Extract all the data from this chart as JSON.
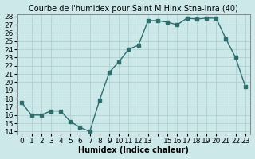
{
  "x": [
    0,
    1,
    2,
    3,
    4,
    5,
    6,
    7,
    8,
    9,
    10,
    11,
    12,
    13,
    14,
    15,
    16,
    17,
    18,
    19,
    20,
    21,
    22,
    23
  ],
  "y": [
    17.5,
    16.0,
    16.0,
    16.5,
    16.5,
    15.2,
    14.5,
    14.0,
    17.8,
    21.2,
    22.5,
    24.0,
    24.5,
    27.5,
    27.5,
    27.3,
    27.0,
    27.8,
    27.7,
    27.8,
    27.8,
    25.3,
    23.0,
    19.5
  ],
  "title": "Courbe de l'humidex pour Saint M Hinx Stna-Inra (40)",
  "xlabel": "Humidex (Indice chaleur)",
  "ylabel": "",
  "ylim": [
    14,
    28
  ],
  "xlim": [
    -0.5,
    23.5
  ],
  "yticks": [
    14,
    15,
    16,
    17,
    18,
    19,
    20,
    21,
    22,
    23,
    24,
    25,
    26,
    27,
    28
  ],
  "xticks": [
    0,
    1,
    2,
    3,
    4,
    5,
    6,
    7,
    8,
    9,
    10,
    11,
    12,
    13,
    14,
    15,
    16,
    17,
    18,
    19,
    20,
    21,
    22,
    23
  ],
  "xtick_labels": [
    "0",
    "1",
    "2",
    "3",
    "4",
    "5",
    "6",
    "7",
    "8",
    "9",
    "10",
    "11",
    "12",
    "13",
    "",
    "15",
    "16",
    "17",
    "18",
    "19",
    "20",
    "21",
    "22",
    "23"
  ],
  "line_color": "#2d6e6e",
  "marker_color": "#2d6e6e",
  "bg_color": "#cce8e8",
  "grid_color": "#aacccc",
  "title_fontsize": 7,
  "label_fontsize": 7,
  "tick_fontsize": 6.5
}
